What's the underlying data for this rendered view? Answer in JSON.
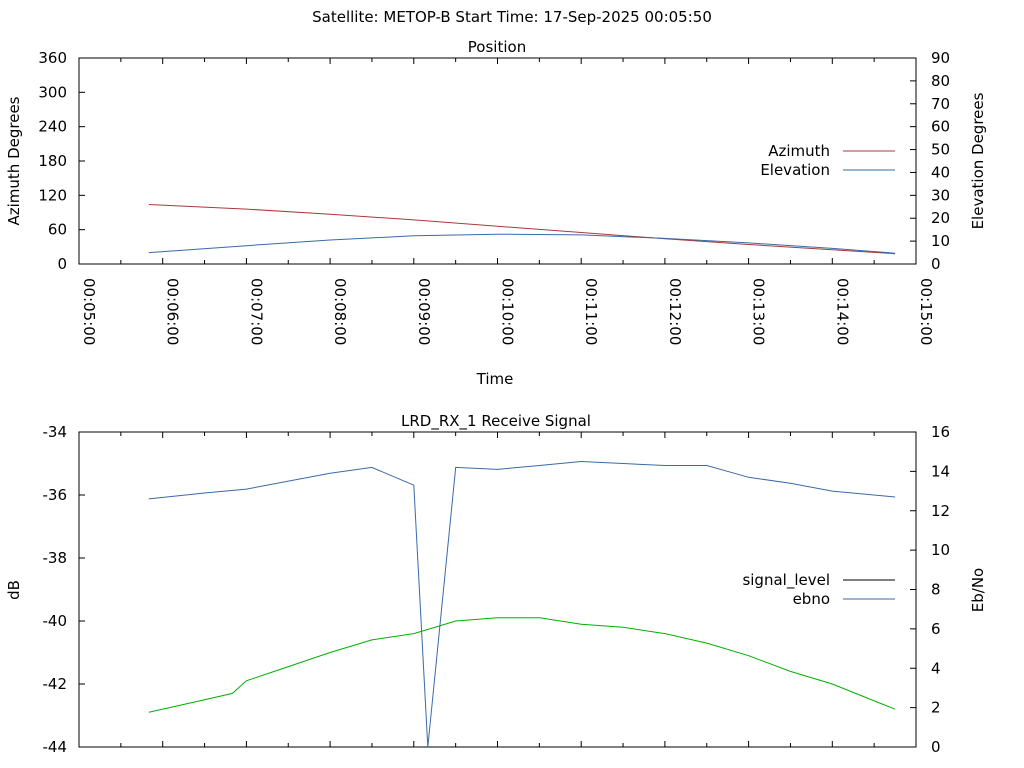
{
  "header": {
    "title": "Satellite: METOP-B    Start Time: 17-Sep-2025 00:05:50"
  },
  "chart_data": [
    {
      "type": "line",
      "title": "Position",
      "xlabel": "Time",
      "ylabel": "Azimuth Degrees",
      "ylabel_right": "Elevation Degrees",
      "x_ticks": [
        "00:05:00",
        "00:06:00",
        "00:07:00",
        "00:08:00",
        "00:09:00",
        "00:10:00",
        "00:11:00",
        "00:12:00",
        "00:13:00",
        "00:14:00",
        "00:15:00"
      ],
      "xlim": [
        "00:05:00",
        "00:15:00"
      ],
      "y_ticks": [
        "0",
        "60",
        "120",
        "180",
        "240",
        "300",
        "360"
      ],
      "ylim": [
        0,
        360
      ],
      "y2_ticks": [
        "0",
        "10",
        "20",
        "30",
        "40",
        "50",
        "60",
        "70",
        "80",
        "90"
      ],
      "y2lim": [
        0,
        90
      ],
      "legend_position": "right",
      "grid": false,
      "series": [
        {
          "name": "Azimuth",
          "axis": "left",
          "color": "#a83a3a",
          "x": [
            "00:05:50",
            "00:07:00",
            "00:08:00",
            "00:09:00",
            "00:10:00",
            "00:11:00",
            "00:12:00",
            "00:13:00",
            "00:14:00",
            "00:14:45"
          ],
          "values": [
            104,
            96,
            87,
            77,
            66,
            55,
            44,
            34,
            25,
            18
          ]
        },
        {
          "name": "Elevation",
          "axis": "right",
          "color": "#3a6aa8",
          "x": [
            "00:05:50",
            "00:07:00",
            "00:08:00",
            "00:09:00",
            "00:10:00",
            "00:11:00",
            "00:12:00",
            "00:13:00",
            "00:14:00",
            "00:14:45"
          ],
          "values": [
            5,
            8,
            10.5,
            12.3,
            13,
            12.7,
            11.2,
            9.2,
            6.8,
            4.7
          ]
        }
      ]
    },
    {
      "type": "line",
      "title": "LRD_RX_1 Receive Signal",
      "ylabel": "dB",
      "ylabel_right": "Eb/No",
      "xlim": [
        "00:05:00",
        "00:15:00"
      ],
      "y_ticks": [
        "-44",
        "-42",
        "-40",
        "-38",
        "-36",
        "-34"
      ],
      "ylim": [
        -44,
        -34
      ],
      "y2_ticks": [
        "0",
        "2",
        "4",
        "6",
        "8",
        "10",
        "12",
        "14",
        "16"
      ],
      "y2lim": [
        0,
        16
      ],
      "legend_position": "right",
      "grid": false,
      "series": [
        {
          "name": "signal_level",
          "axis": "left",
          "color": "#00b000",
          "x": [
            "00:05:50",
            "00:06:30",
            "00:06:50",
            "00:07:00",
            "00:07:20",
            "00:08:00",
            "00:08:30",
            "00:09:00",
            "00:09:30",
            "00:10:00",
            "00:10:30",
            "00:11:00",
            "00:11:30",
            "00:12:00",
            "00:12:30",
            "00:13:00",
            "00:13:30",
            "00:14:00",
            "00:14:45"
          ],
          "values": [
            -42.9,
            -42.5,
            -42.3,
            -41.9,
            -41.6,
            -41.0,
            -40.6,
            -40.4,
            -40.0,
            -39.9,
            -39.9,
            -40.1,
            -40.2,
            -40.4,
            -40.7,
            -41.1,
            -41.6,
            -42.0,
            -42.8
          ]
        },
        {
          "name": "ebno",
          "axis": "right",
          "color": "#3a6aa8",
          "x": [
            "00:05:50",
            "00:06:30",
            "00:07:00",
            "00:08:00",
            "00:08:30",
            "00:09:00",
            "00:09:10",
            "00:09:30",
            "00:10:00",
            "00:10:30",
            "00:11:00",
            "00:11:30",
            "00:12:00",
            "00:12:30",
            "00:13:00",
            "00:13:30",
            "00:14:00",
            "00:14:45"
          ],
          "values": [
            12.6,
            12.9,
            13.1,
            13.9,
            14.2,
            13.3,
            0,
            14.2,
            14.1,
            14.3,
            14.5,
            14.4,
            14.3,
            14.3,
            13.7,
            13.4,
            13.0,
            12.7
          ]
        }
      ]
    }
  ]
}
